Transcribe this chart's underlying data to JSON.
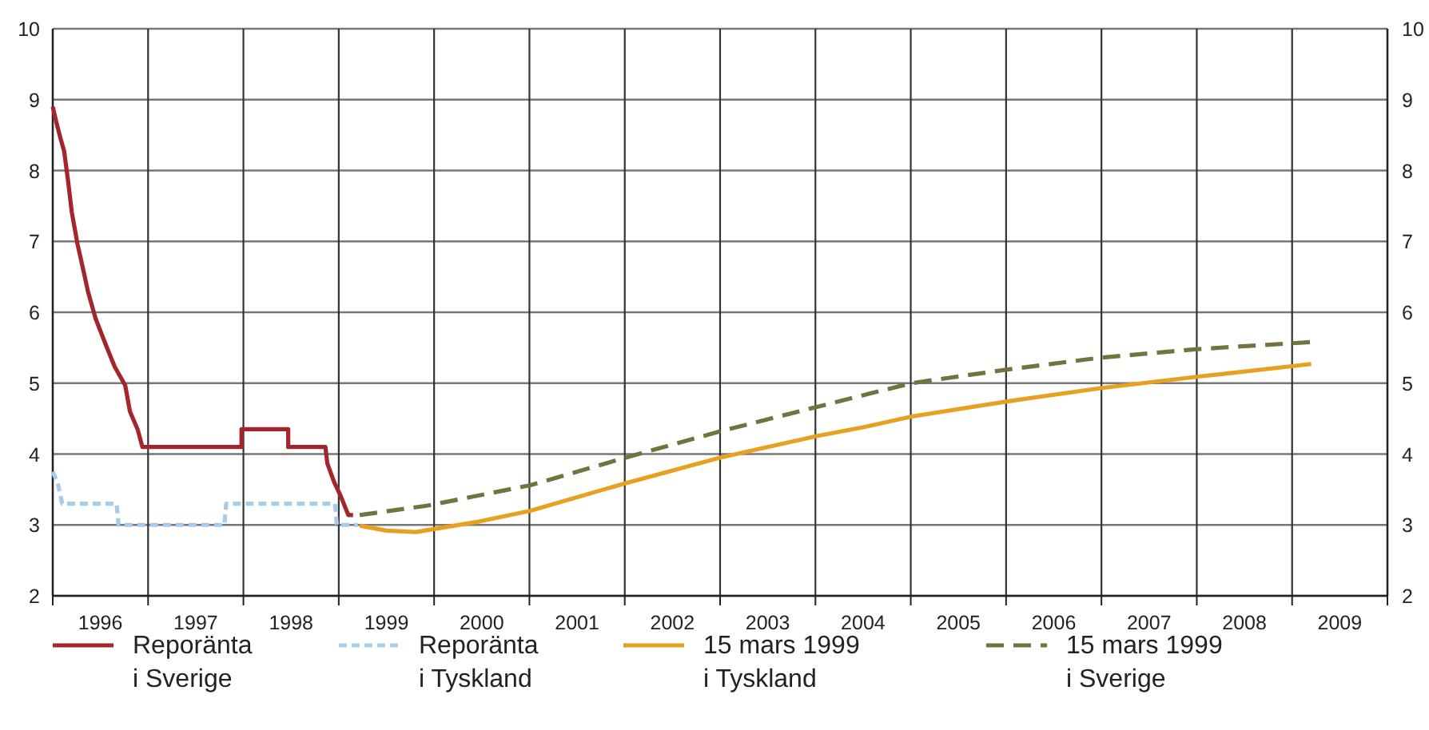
{
  "chart_data": {
    "type": "line",
    "xlim": [
      1996,
      2010
    ],
    "xticks": [
      {
        "value": 1996,
        "label": null
      },
      {
        "value": 1996.5,
        "label": "1996"
      },
      {
        "value": 1997,
        "label": null
      },
      {
        "value": 1997.5,
        "label": "1997"
      },
      {
        "value": 1998,
        "label": null
      },
      {
        "value": 1998.5,
        "label": "1998"
      },
      {
        "value": 1999,
        "label": null
      },
      {
        "value": 1999.5,
        "label": "1999"
      },
      {
        "value": 2000,
        "label": null
      },
      {
        "value": 2000.5,
        "label": "2000"
      },
      {
        "value": 2001,
        "label": null
      },
      {
        "value": 2001.5,
        "label": "2001"
      },
      {
        "value": 2002,
        "label": null
      },
      {
        "value": 2002.5,
        "label": "2002"
      },
      {
        "value": 2003,
        "label": null
      },
      {
        "value": 2003.5,
        "label": "2003"
      },
      {
        "value": 2004,
        "label": null
      },
      {
        "value": 2004.5,
        "label": "2004"
      },
      {
        "value": 2005,
        "label": null
      },
      {
        "value": 2005.5,
        "label": "2005"
      },
      {
        "value": 2006,
        "label": null
      },
      {
        "value": 2006.5,
        "label": "2006"
      },
      {
        "value": 2007,
        "label": null
      },
      {
        "value": 2007.5,
        "label": "2007"
      },
      {
        "value": 2008,
        "label": null
      },
      {
        "value": 2008.5,
        "label": "2008"
      },
      {
        "value": 2009,
        "label": null
      },
      {
        "value": 2009.5,
        "label": "2009"
      },
      {
        "value": 2010,
        "label": null
      }
    ],
    "ylim": [
      2,
      10
    ],
    "yticks": [
      2,
      3,
      4,
      5,
      6,
      7,
      8,
      9,
      10
    ],
    "y2lim": [
      2,
      10
    ],
    "y2ticks": [
      2,
      3,
      4,
      5,
      6,
      7,
      8,
      9,
      10
    ],
    "grid": true,
    "legend": "bottom",
    "marker": "none",
    "series": [
      {
        "name": "Reporänta\ni Sverige",
        "color": "#a4262c",
        "line_style": "solid",
        "x": [
          1996.0,
          1996.04,
          1996.08,
          1996.12,
          1996.16,
          1996.2,
          1996.26,
          1996.31,
          1996.37,
          1996.45,
          1996.56,
          1996.65,
          1996.76,
          1996.81,
          1996.89,
          1996.94,
          1997.98,
          1997.98,
          1998.47,
          1998.47,
          1998.86,
          1998.88,
          1998.95,
          1999.02,
          1999.1,
          1999.15
        ],
        "values": [
          8.9,
          8.67,
          8.46,
          8.27,
          7.86,
          7.41,
          6.96,
          6.66,
          6.29,
          5.91,
          5.53,
          5.23,
          4.97,
          4.6,
          4.35,
          4.1,
          4.1,
          4.35,
          4.35,
          4.1,
          4.1,
          3.87,
          3.61,
          3.41,
          3.14,
          3.14
        ]
      },
      {
        "name": "Reporänta\ni Tyskland",
        "color": "#a8cbea",
        "line_style": "dashed",
        "x": [
          1996.0,
          1996.05,
          1996.1,
          1996.67,
          1996.69,
          1997.8,
          1997.82,
          1998.96,
          1998.98,
          1999.2
        ],
        "values": [
          3.75,
          3.6,
          3.3,
          3.3,
          3.0,
          3.0,
          3.3,
          3.3,
          3.0,
          3.0
        ]
      },
      {
        "name": "15 mars 1999\ni Tyskland",
        "color": "#e8a020",
        "line_style": "solid",
        "x": [
          1999.22,
          1999.5,
          1999.81,
          2000.48,
          2001.01,
          2002.01,
          2003.0,
          2004.0,
          2004.51,
          2005.01,
          2006.0,
          2006.99,
          2008.0,
          2009.2
        ],
        "values": [
          2.99,
          2.92,
          2.9,
          3.05,
          3.2,
          3.59,
          3.95,
          4.25,
          4.38,
          4.53,
          4.74,
          4.93,
          5.09,
          5.27
        ]
      },
      {
        "name": "15 mars 1999\ni Sverige",
        "color": "#737340",
        "line_style": "dashed",
        "x": [
          1999.22,
          1999.92,
          2001.01,
          2002.01,
          2003.0,
          2004.0,
          2004.56,
          2005.01,
          2006.0,
          2006.99,
          2008.0,
          2009.2
        ],
        "values": [
          3.14,
          3.27,
          3.56,
          3.95,
          4.32,
          4.66,
          4.85,
          5.0,
          5.19,
          5.36,
          5.48,
          5.58
        ]
      }
    ]
  }
}
